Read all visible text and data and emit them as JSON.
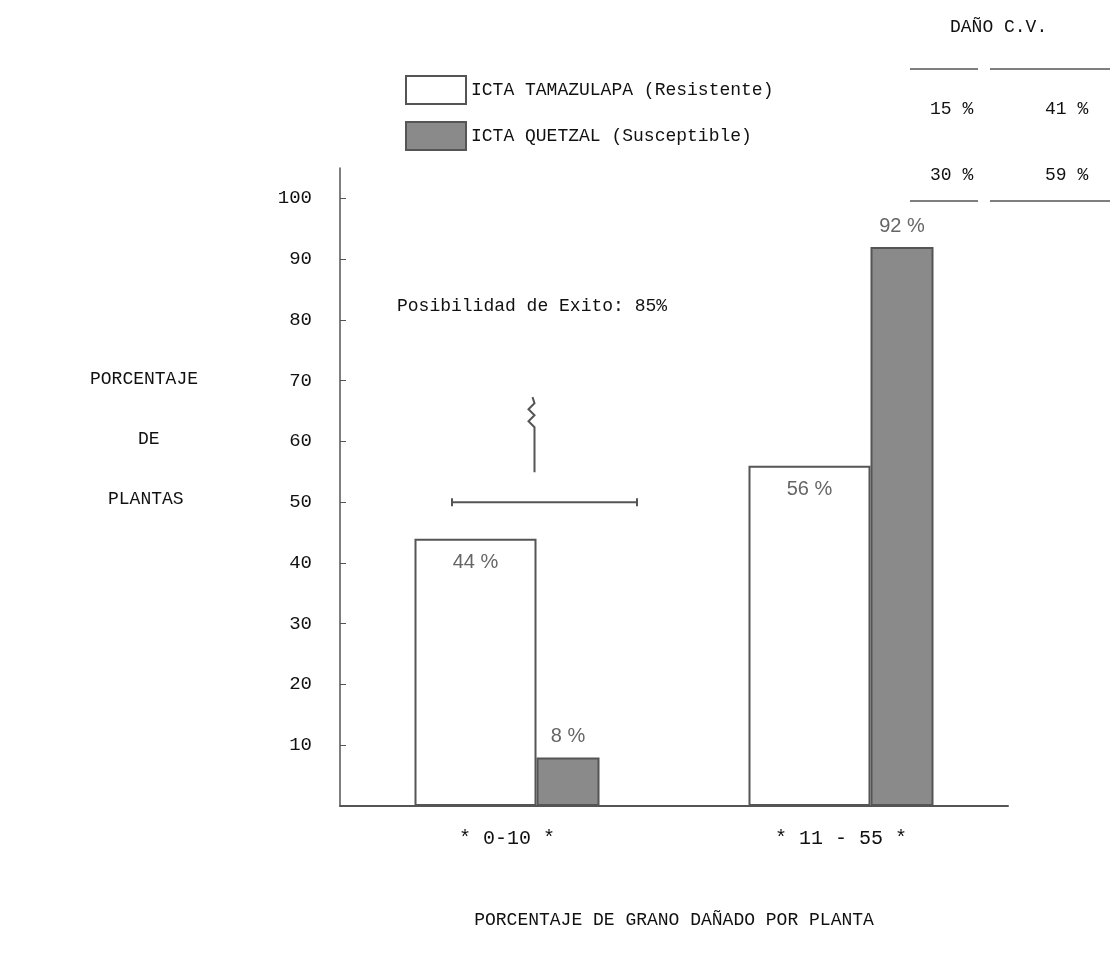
{
  "chart_data": {
    "type": "bar",
    "xlabel": "PORCENTAJE DE GRANO DAÑADO POR PLANTA",
    "ylabel": "PORCENTAJE DE PLANTAS",
    "categories": [
      "* 0-10 *",
      "* 11 - 55 *"
    ],
    "series": [
      {
        "name": "ICTA TAMAZULAPA (Resistente)",
        "color": "#ffffff",
        "values": [
          44,
          56
        ],
        "value_labels": [
          "44 %",
          "56 %"
        ]
      },
      {
        "name": "ICTA QUETZAL (Susceptible)",
        "color": "#8a8a8a",
        "values": [
          8,
          92
        ],
        "value_labels": [
          "8 %",
          "92 %"
        ]
      }
    ],
    "ylim": [
      0,
      105
    ],
    "yticks": [
      10,
      20,
      30,
      40,
      50,
      60,
      70,
      80,
      90,
      100
    ],
    "legend": "top",
    "grid": false,
    "annotations": [
      "Posibilidad de Exito: 85%",
      "DAÑO C.V.",
      "15 %",
      "41 %",
      "30 %",
      "59 %"
    ]
  }
}
